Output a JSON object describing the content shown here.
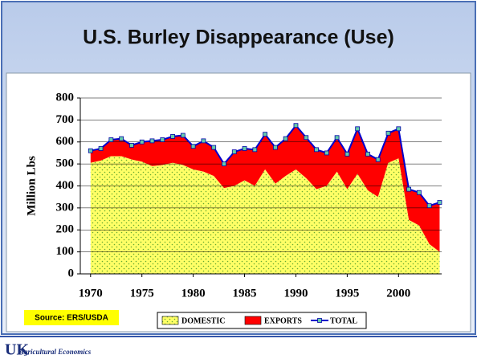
{
  "chart_data": {
    "type": "stacked-area",
    "title": "U.S. Burley Disappearance (Use)",
    "y_label": "Million Lbs",
    "x": [
      1970,
      1971,
      1972,
      1973,
      1974,
      1975,
      1976,
      1977,
      1978,
      1979,
      1980,
      1981,
      1982,
      1983,
      1984,
      1985,
      1986,
      1987,
      1988,
      1989,
      1990,
      1991,
      1992,
      1993,
      1994,
      1995,
      1996,
      1997,
      1998,
      1999,
      2000,
      2001,
      2002,
      2003,
      2004
    ],
    "series": [
      {
        "name": "DOMESTIC",
        "color": "#ffff66",
        "values": [
          505,
          515,
          535,
          535,
          520,
          510,
          490,
          495,
          505,
          495,
          475,
          465,
          445,
          390,
          400,
          425,
          400,
          475,
          410,
          445,
          475,
          435,
          385,
          400,
          465,
          385,
          455,
          380,
          350,
          505,
          525,
          245,
          220,
          135,
          100
        ]
      },
      {
        "name": "EXPORTS",
        "color": "#ff0000",
        "values": [
          55,
          55,
          75,
          80,
          65,
          90,
          115,
          115,
          120,
          135,
          105,
          140,
          130,
          110,
          155,
          145,
          165,
          160,
          165,
          170,
          200,
          185,
          180,
          150,
          155,
          160,
          205,
          165,
          170,
          135,
          135,
          140,
          150,
          175,
          225
        ]
      },
      {
        "name": "TOTAL",
        "color": "#0000cc",
        "values": [
          560,
          570,
          610,
          615,
          585,
          600,
          605,
          610,
          625,
          630,
          580,
          605,
          575,
          500,
          555,
          570,
          565,
          635,
          575,
          615,
          675,
          620,
          565,
          550,
          620,
          545,
          660,
          545,
          520,
          640,
          660,
          385,
          370,
          310,
          325
        ]
      }
    ],
    "xlim": [
      1969,
      2004.2
    ],
    "xticks": [
      1970,
      1975,
      1980,
      1985,
      1990,
      1995,
      2000
    ],
    "ylim": [
      0,
      800
    ],
    "yticks": [
      0,
      100,
      200,
      300,
      400,
      500,
      600,
      700,
      800
    ],
    "grid": true,
    "legend": "bottom",
    "source": "Source:  ERS/USDA",
    "footer": {
      "logo": "UK",
      "text": "Agricultural Economics"
    }
  }
}
